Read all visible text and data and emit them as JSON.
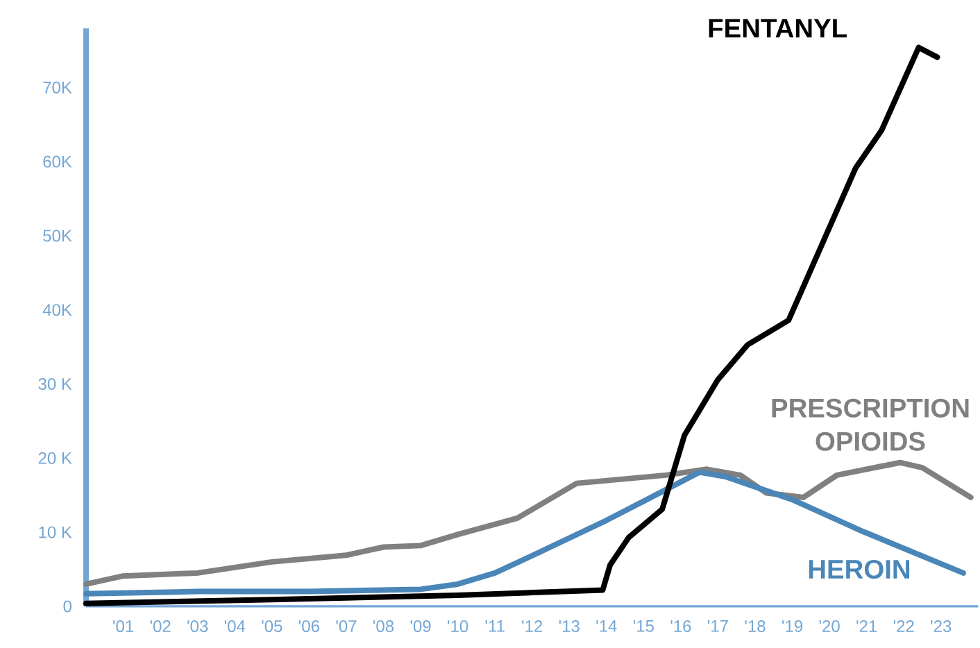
{
  "chart_data": {
    "type": "line",
    "xlim": [
      2000,
      2024
    ],
    "ylim": [
      0,
      78000
    ],
    "xticks": [
      {
        "value": 2001,
        "label": "'01"
      },
      {
        "value": 2002,
        "label": "'02"
      },
      {
        "value": 2003,
        "label": "'03"
      },
      {
        "value": 2004,
        "label": "'04"
      },
      {
        "value": 2005,
        "label": "'05"
      },
      {
        "value": 2006,
        "label": "'06"
      },
      {
        "value": 2007,
        "label": "'07"
      },
      {
        "value": 2008,
        "label": "'08"
      },
      {
        "value": 2009,
        "label": "'09"
      },
      {
        "value": 2010,
        "label": "'10"
      },
      {
        "value": 2011,
        "label": "'11"
      },
      {
        "value": 2012,
        "label": "'12"
      },
      {
        "value": 2013,
        "label": "'13"
      },
      {
        "value": 2014,
        "label": "'14"
      },
      {
        "value": 2015,
        "label": "'15"
      },
      {
        "value": 2016,
        "label": "'16"
      },
      {
        "value": 2017,
        "label": "'17"
      },
      {
        "value": 2018,
        "label": "'18"
      },
      {
        "value": 2019,
        "label": "'19"
      },
      {
        "value": 2020,
        "label": "'20"
      },
      {
        "value": 2021,
        "label": "'21"
      },
      {
        "value": 2022,
        "label": "'22"
      },
      {
        "value": 2023,
        "label": "'23"
      }
    ],
    "yticks": [
      0,
      {
        "value": 10000,
        "label": "10 K"
      },
      {
        "value": 20000,
        "label": "20 K"
      },
      {
        "value": 30000,
        "label": "30 K"
      },
      {
        "value": 40000,
        "label": "40K"
      },
      {
        "value": 50000,
        "label": "50K"
      },
      {
        "value": 60000,
        "label": "60K"
      },
      {
        "value": 70000,
        "label": "70K"
      }
    ],
    "line_style": "solid",
    "series": [
      {
        "name": "PRESCRIPTION OPIOIDS",
        "color": "#808080",
        "x": [
          2000,
          2001,
          2003,
          2005,
          2007,
          2008,
          2009,
          2010,
          2011.6,
          2013.2,
          2015.6,
          2016.7,
          2017.6,
          2018.3,
          2019.3,
          2020.2,
          2021.9,
          2022.5,
          2023.8
        ],
        "values": [
          3000,
          4100,
          4500,
          6000,
          6900,
          8000,
          8200,
          9700,
          11900,
          16600,
          17700,
          18500,
          17700,
          15300,
          14700,
          17700,
          19400,
          18700,
          14700
        ]
      },
      {
        "name": "HEROIN",
        "color": "#4a86b8",
        "x": [
          2000,
          2003,
          2006,
          2009,
          2010,
          2011,
          2012.2,
          2014,
          2015.2,
          2016.5,
          2017.2,
          2019,
          2020.9,
          2023.6
        ],
        "values": [
          1700,
          2000,
          2000,
          2300,
          3000,
          4500,
          7300,
          11600,
          14700,
          18100,
          17500,
          14400,
          10100,
          4500
        ]
      },
      {
        "name": "FENTANYL",
        "color": "#000000",
        "x": [
          2000,
          2005,
          2010,
          2013.9,
          2014.1,
          2014.6,
          2015.5,
          2016.1,
          2017,
          2017.8,
          2018.9,
          2020.7,
          2021.4,
          2022.4,
          2022.9
        ],
        "values": [
          400,
          900,
          1500,
          2200,
          5600,
          9300,
          13100,
          23100,
          30600,
          35300,
          38600,
          59100,
          64200,
          75400,
          74100
        ]
      }
    ]
  }
}
